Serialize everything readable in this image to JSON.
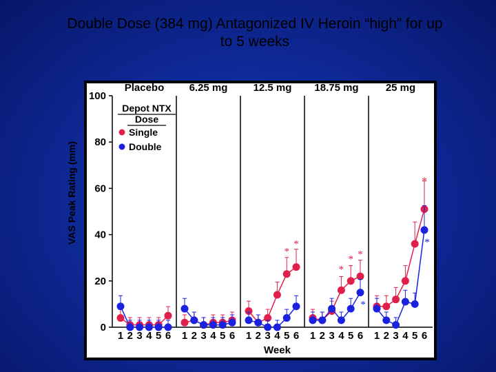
{
  "slide": {
    "title_line1": "Double Dose (384 mg) Antagonized IV Heroin “high” for up",
    "title_line2": "to 5 weeks"
  },
  "chart_data": {
    "type": "line",
    "ylabel": "VAS Peak Rating (mm)",
    "xlabel": "Week",
    "ylim": [
      0,
      100
    ],
    "yticks": [
      0,
      20,
      40,
      60,
      80,
      100
    ],
    "weeks": [
      1,
      2,
      3,
      4,
      5,
      6
    ],
    "legend": {
      "title_line1": "Depot NTX",
      "title_line2": "Dose",
      "entries": [
        "Single",
        "Double"
      ],
      "placement": "top-left"
    },
    "colors": {
      "single": "#e0204a",
      "double": "#1a22e0"
    },
    "panels": [
      {
        "label": "Placebo",
        "single": [
          4,
          1,
          1,
          1,
          1,
          5
        ],
        "double": [
          9,
          0,
          0,
          0,
          0,
          0
        ],
        "single_stars": [],
        "double_stars": []
      },
      {
        "label": "6.25 mg",
        "single": [
          2,
          3,
          1,
          2,
          2,
          3
        ],
        "double": [
          8,
          3,
          1,
          1,
          1,
          2
        ],
        "single_stars": [],
        "double_stars": []
      },
      {
        "label": "12.5 mg",
        "single": [
          7,
          2,
          4,
          14,
          23,
          26
        ],
        "double": [
          3,
          2,
          0,
          0,
          4,
          9
        ],
        "single_stars": [
          5,
          6
        ],
        "double_stars": []
      },
      {
        "label": "18.75 mg",
        "single": [
          4,
          3,
          7,
          16,
          20,
          22
        ],
        "double": [
          3,
          3,
          8,
          3,
          8,
          15
        ],
        "single_stars": [
          4,
          5,
          6
        ],
        "double_stars": [
          6
        ]
      },
      {
        "label": "25 mg",
        "single": [
          9,
          9,
          12,
          20,
          36,
          51
        ],
        "double": [
          8,
          3,
          1,
          11,
          10,
          42
        ],
        "single_stars": [
          6
        ],
        "double_stars": [
          6
        ]
      }
    ]
  }
}
